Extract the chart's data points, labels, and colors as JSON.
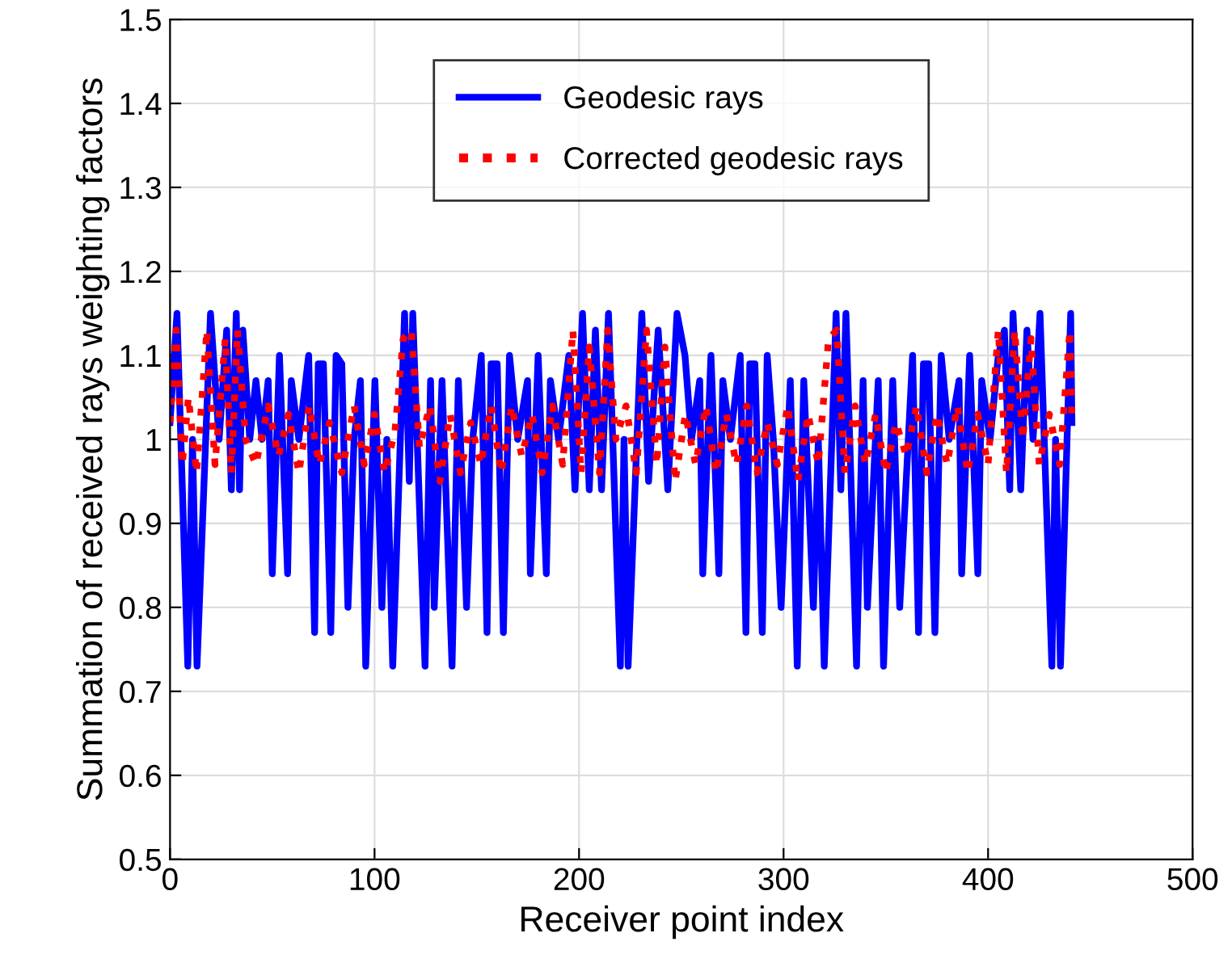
{
  "chart_data": {
    "type": "line",
    "xlabel": "Receiver point index",
    "ylabel": "Summation of received rays weighting factors",
    "xlim": [
      0,
      500
    ],
    "ylim": [
      0.5,
      1.5
    ],
    "xticks": [
      0,
      100,
      200,
      300,
      400,
      500
    ],
    "yticks": [
      0.5,
      0.6,
      0.7,
      0.8,
      0.9,
      1,
      1.1,
      1.2,
      1.3,
      1.4,
      1.5
    ],
    "grid": true,
    "legend": "top",
    "marker": "none",
    "series": [
      {
        "name": "Geodesic rays",
        "color": "#0000ff",
        "line_style": "solid",
        "x": [
          0,
          3.4,
          8.7,
          11,
          13.2,
          19.8,
          24,
          27.7,
          30,
          32.4,
          34,
          35.6,
          39,
          42,
          45,
          48,
          50,
          53.5,
          57.5,
          59.3,
          63,
          67.8,
          70.7,
          72.5,
          75,
          78.6,
          81.2,
          84,
          87,
          90,
          93.1,
          95.7,
          100.2,
          103.6,
          106,
          108.9,
          114.7,
          117,
          118.7,
          124.7,
          127.4,
          129.2,
          133,
          137.9,
          141,
          145,
          148,
          152.2,
          155,
          157,
          160,
          163,
          166,
          170,
          174.8,
          176.2,
          180,
          184,
          186,
          190,
          195,
          198,
          201.7,
          205,
          208,
          211,
          214.4,
          220.2,
          222,
          224,
          230.7,
          234,
          238.7,
          243.4,
          247.9,
          251.8,
          255,
          259,
          260.5,
          264.5,
          268.4,
          270.3,
          274,
          278.8,
          281.6,
          283.5,
          286,
          289.6,
          292,
          295,
          298.8,
          303.3,
          306.7,
          309.9,
          314.6,
          317,
          319.9,
          325.7,
          328,
          330.5,
          335.7,
          338.9,
          341,
          346.3,
          348.9,
          353.4,
          356.8,
          363.1,
          366,
          368.4,
          371,
          374,
          377.1,
          381,
          385.8,
          387.1,
          391,
          395,
          396.9,
          401,
          405,
          408,
          410.6,
          412.2,
          416,
          419,
          422,
          425.4,
          431.2,
          433,
          435.4,
          440.4,
          441
        ],
        "values": [
          1.02,
          1.15,
          0.73,
          1.0,
          0.73,
          1.15,
          1.0,
          1.13,
          0.94,
          1.15,
          0.94,
          1.13,
          1.0,
          1.07,
          1.0,
          1.07,
          0.84,
          1.1,
          0.84,
          1.07,
          1.0,
          1.1,
          0.77,
          1.09,
          1.09,
          0.77,
          1.1,
          1.09,
          0.8,
          1.0,
          1.07,
          0.73,
          1.07,
          0.8,
          1.0,
          0.73,
          1.15,
          0.95,
          1.15,
          0.73,
          1.07,
          0.8,
          1.07,
          0.73,
          1.07,
          0.8,
          1.0,
          1.1,
          0.77,
          1.09,
          1.09,
          0.77,
          1.1,
          1.0,
          1.07,
          0.84,
          1.1,
          0.84,
          1.07,
          1.0,
          1.1,
          0.94,
          1.15,
          0.94,
          1.13,
          0.94,
          1.15,
          0.73,
          1.0,
          0.73,
          1.15,
          0.95,
          1.13,
          0.94,
          1.15,
          1.1,
          1.0,
          1.07,
          0.84,
          1.1,
          0.84,
          1.07,
          1.0,
          1.1,
          0.77,
          1.09,
          1.09,
          0.77,
          1.1,
          1.0,
          0.8,
          1.07,
          0.73,
          1.07,
          0.8,
          1.0,
          0.73,
          1.15,
          0.94,
          1.15,
          0.73,
          1.07,
          0.8,
          1.07,
          0.73,
          1.07,
          0.8,
          1.1,
          0.77,
          1.09,
          1.09,
          0.77,
          1.1,
          1.0,
          1.07,
          0.84,
          1.1,
          0.84,
          1.07,
          1.0,
          1.1,
          1.13,
          0.94,
          1.15,
          0.94,
          1.13,
          1.0,
          1.15,
          0.73,
          1.0,
          0.73,
          1.15,
          1.02
        ]
      },
      {
        "name": "Corrected geodesic rays",
        "color": "#ff0000",
        "line_style": "dotted",
        "x": [
          0,
          3,
          6,
          9,
          13,
          18,
          22,
          27,
          30,
          33,
          37,
          42,
          48,
          53,
          58,
          63,
          68,
          73,
          78,
          84,
          90,
          95,
          100,
          105,
          110,
          114,
          118,
          122,
          127,
          132,
          137,
          142,
          147,
          152,
          157,
          162,
          167,
          172,
          177,
          182,
          187,
          192,
          197,
          201,
          205,
          210,
          214,
          218,
          223,
          228,
          233,
          238,
          242,
          247,
          252,
          257,
          262,
          267,
          272,
          277,
          282,
          287,
          292,
          297,
          302,
          307,
          312,
          317,
          322,
          326,
          330,
          335,
          340,
          345,
          350,
          355,
          360,
          365,
          370,
          375,
          380,
          385,
          390,
          395,
          400,
          405,
          409,
          413,
          417,
          421,
          425,
          430,
          435,
          440,
          441
        ],
        "values": [
          1.02,
          1.13,
          0.97,
          1.05,
          0.96,
          1.13,
          0.97,
          1.12,
          0.96,
          1.13,
          1.0,
          0.97,
          1.04,
          0.98,
          1.03,
          0.96,
          1.04,
          0.97,
          1.02,
          0.96,
          1.04,
          0.97,
          1.03,
          0.96,
          1.01,
          1.12,
          1.13,
          0.99,
          1.04,
          0.95,
          1.03,
          0.96,
          1.02,
          0.97,
          1.04,
          0.96,
          1.04,
          0.98,
          1.03,
          0.96,
          1.04,
          0.97,
          1.13,
          0.96,
          1.11,
          0.96,
          1.13,
          1.0,
          1.04,
          0.96,
          1.13,
          0.97,
          1.11,
          0.95,
          1.03,
          0.97,
          1.04,
          0.96,
          1.03,
          0.97,
          1.04,
          0.96,
          1.02,
          0.97,
          1.04,
          0.95,
          1.03,
          0.97,
          1.12,
          1.13,
          0.96,
          1.04,
          0.97,
          1.03,
          0.96,
          1.02,
          0.98,
          1.04,
          0.96,
          1.03,
          0.97,
          1.04,
          0.96,
          1.03,
          0.97,
          1.13,
          0.96,
          1.13,
          1.0,
          1.12,
          0.97,
          1.03,
          0.97,
          1.13,
          1.02
        ]
      }
    ]
  }
}
